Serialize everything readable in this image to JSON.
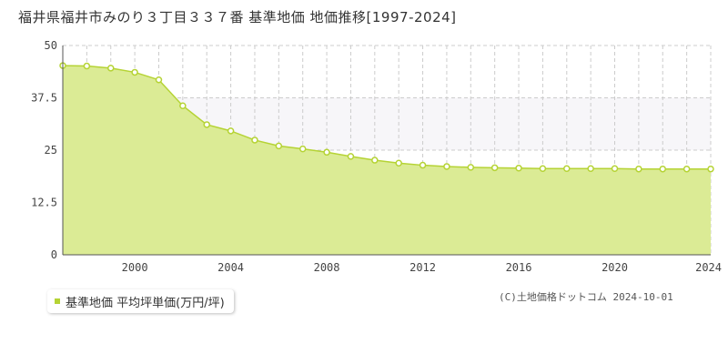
{
  "title": "福井県福井市みのり３丁目３３７番 基準地価 地価推移[1997-2024]",
  "legend_label": "基準地価 平均坪単価(万円/坪)",
  "copyright": "(C)土地価格ドットコム 2024-10-01",
  "colors": {
    "area_fill": "#dbeb95",
    "line": "#b5d334",
    "marker": "#b5d334",
    "band": "#f7f6f9",
    "grid": "#cccccc"
  },
  "chart_data": {
    "type": "area",
    "x": [
      1997,
      1998,
      1999,
      2000,
      2001,
      2002,
      2003,
      2004,
      2005,
      2006,
      2007,
      2008,
      2009,
      2010,
      2011,
      2012,
      2013,
      2014,
      2015,
      2016,
      2017,
      2018,
      2019,
      2020,
      2021,
      2022,
      2023,
      2024
    ],
    "series": [
      {
        "values": [
          45.2,
          45.1,
          44.6,
          43.6,
          41.8,
          35.6,
          31.1,
          29.6,
          27.4,
          26.0,
          25.3,
          24.5,
          23.5,
          22.6,
          21.9,
          21.4,
          21.1,
          20.9,
          20.8,
          20.7,
          20.6,
          20.6,
          20.6,
          20.6,
          20.5,
          20.5,
          20.5,
          20.5
        ]
      }
    ],
    "xticks": [
      2000,
      2004,
      2008,
      2012,
      2016,
      2020,
      2024
    ],
    "yticks": [
      0,
      12.5,
      25,
      37.5,
      50
    ],
    "ytick_labels": [
      "0",
      "12.5",
      "25",
      "37.5",
      "50"
    ],
    "xlim": [
      1997,
      2024
    ],
    "ylim": [
      0,
      50
    ],
    "grid": true
  }
}
